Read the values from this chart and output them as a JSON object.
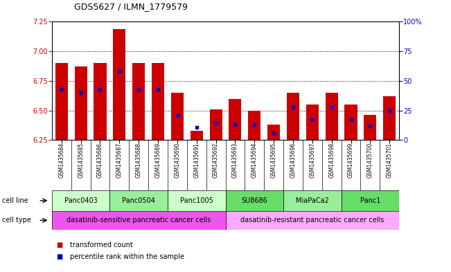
{
  "title": "GDS5627 / ILMN_1779579",
  "samples": [
    "GSM1435684",
    "GSM1435685",
    "GSM1435686",
    "GSM1435687",
    "GSM1435688",
    "GSM1435689",
    "GSM1435690",
    "GSM1435691",
    "GSM1435692",
    "GSM1435693",
    "GSM1435694",
    "GSM1435695",
    "GSM1435696",
    "GSM1435697",
    "GSM1435698",
    "GSM1435699",
    "GSM1435700",
    "GSM1435701"
  ],
  "bar_heights": [
    6.9,
    6.87,
    6.9,
    7.19,
    6.9,
    6.9,
    6.65,
    6.33,
    6.51,
    6.6,
    6.5,
    6.38,
    6.65,
    6.55,
    6.65,
    6.55,
    6.46,
    6.62
  ],
  "blue_dot_y": [
    6.68,
    6.65,
    6.68,
    6.83,
    6.68,
    6.68,
    6.46,
    6.36,
    6.39,
    6.38,
    6.38,
    6.31,
    6.53,
    6.42,
    6.53,
    6.42,
    6.37,
    6.5
  ],
  "ylim": [
    6.25,
    7.25
  ],
  "yticks_left": [
    6.25,
    6.5,
    6.75,
    7.0,
    7.25
  ],
  "yticks_right_vals": [
    0,
    25,
    50,
    75,
    100
  ],
  "yticks_right_labels": [
    "0",
    "25",
    "50",
    "75",
    "100%"
  ],
  "cell_lines": [
    {
      "name": "Panc0403",
      "start": 0,
      "end": 2,
      "color": "#ccffcc"
    },
    {
      "name": "Panc0504",
      "start": 3,
      "end": 5,
      "color": "#99ee99"
    },
    {
      "name": "Panc1005",
      "start": 6,
      "end": 8,
      "color": "#ccffcc"
    },
    {
      "name": "SU8686",
      "start": 9,
      "end": 11,
      "color": "#66dd66"
    },
    {
      "name": "MiaPaCa2",
      "start": 12,
      "end": 14,
      "color": "#99ee99"
    },
    {
      "name": "Panc1",
      "start": 15,
      "end": 17,
      "color": "#66dd66"
    }
  ],
  "cell_types": [
    {
      "name": "dasatinib-sensitive pancreatic cancer cells",
      "start": 0,
      "end": 8,
      "color": "#ee55ee"
    },
    {
      "name": "dasatinib-resistant pancreatic cancer cells",
      "start": 9,
      "end": 17,
      "color": "#ffaaff"
    }
  ],
  "bar_color": "#cc0000",
  "blue_color": "#0000cc",
  "tick_bg_color": "#cccccc",
  "label_color_left": "#cc0000",
  "label_color_right": "#0000cc",
  "grid_lines": [
    6.5,
    6.75,
    7.0
  ],
  "legend_items": [
    {
      "color": "#cc0000",
      "label": "transformed count"
    },
    {
      "color": "#0000cc",
      "label": "percentile rank within the sample"
    }
  ]
}
